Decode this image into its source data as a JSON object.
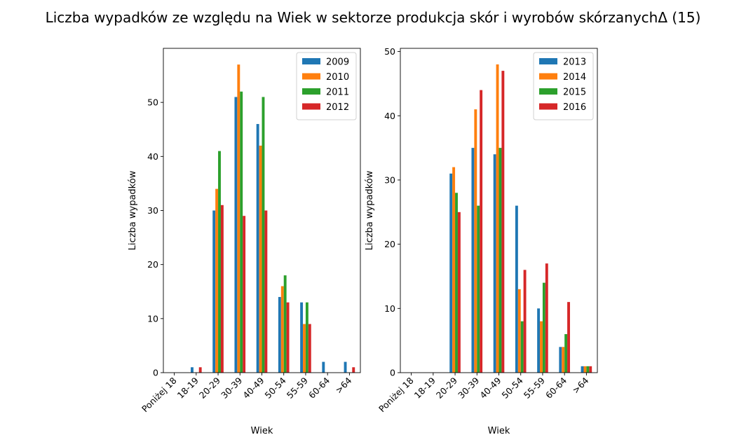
{
  "figure": {
    "title": "Liczba wypadków ze względu na Wiek w sektorze produkcja skór i wyrobów skórzanychΔ (15)"
  },
  "chart_data": [
    {
      "type": "bar",
      "title": "",
      "xlabel": "Wiek",
      "ylabel": "Liczba wypadków",
      "categories": [
        "Poniżej 18",
        "18-19",
        "20-29",
        "30-39",
        "40-49",
        "50-54",
        "55-59",
        "60-64",
        ">64"
      ],
      "ylim": [
        0,
        60
      ],
      "yticks": [
        0,
        10,
        20,
        30,
        40,
        50
      ],
      "legend_position": "top-right",
      "grid": false,
      "series": [
        {
          "name": "2009",
          "color": "#1f77b4",
          "values": [
            0,
            1,
            30,
            51,
            46,
            14,
            13,
            2,
            2
          ]
        },
        {
          "name": "2010",
          "color": "#ff7f0e",
          "values": [
            0,
            0,
            34,
            57,
            42,
            16,
            9,
            0,
            0
          ]
        },
        {
          "name": "2011",
          "color": "#2ca02c",
          "values": [
            0,
            0,
            41,
            52,
            51,
            18,
            13,
            0,
            0
          ]
        },
        {
          "name": "2012",
          "color": "#d62728",
          "values": [
            0,
            1,
            31,
            29,
            30,
            13,
            9,
            0,
            1
          ]
        }
      ]
    },
    {
      "type": "bar",
      "title": "",
      "xlabel": "Wiek",
      "ylabel": "Liczba wypadków",
      "categories": [
        "Poniżej 18",
        "18-19",
        "20-29",
        "30-39",
        "40-49",
        "50-54",
        "55-59",
        "60-64",
        ">64"
      ],
      "ylim": [
        0,
        50.5
      ],
      "yticks": [
        0,
        10,
        20,
        30,
        40,
        50
      ],
      "legend_position": "top-right",
      "grid": false,
      "series": [
        {
          "name": "2013",
          "color": "#1f77b4",
          "values": [
            0,
            0,
            31,
            35,
            34,
            26,
            10,
            4,
            1
          ]
        },
        {
          "name": "2014",
          "color": "#ff7f0e",
          "values": [
            0,
            0,
            32,
            41,
            48,
            13,
            8,
            4,
            1
          ]
        },
        {
          "name": "2015",
          "color": "#2ca02c",
          "values": [
            0,
            0,
            28,
            26,
            35,
            8,
            14,
            6,
            1
          ]
        },
        {
          "name": "2016",
          "color": "#d62728",
          "values": [
            0,
            0,
            25,
            44,
            47,
            16,
            17,
            11,
            1
          ]
        }
      ]
    }
  ]
}
